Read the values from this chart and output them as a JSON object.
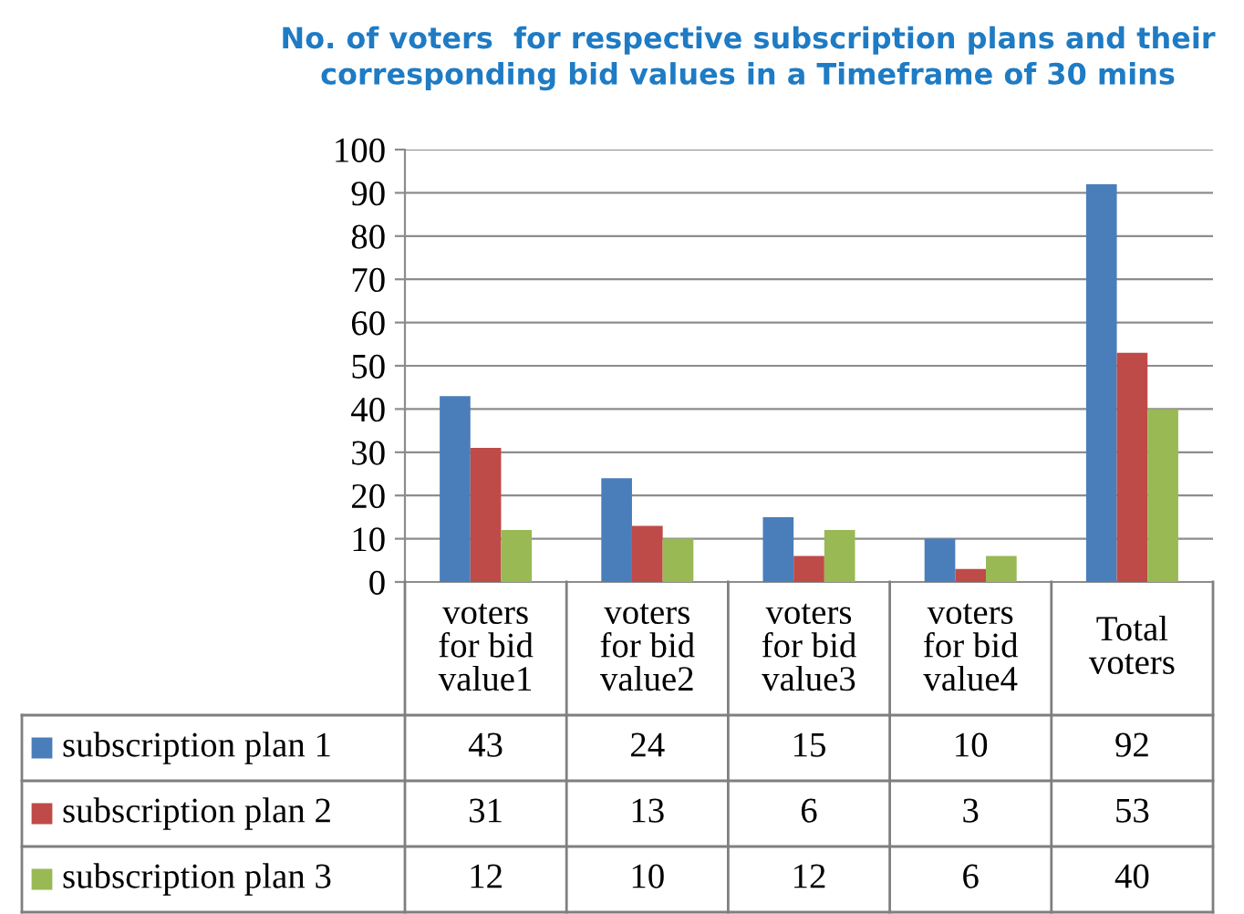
{
  "chart_data": {
    "type": "bar",
    "title": "No. of voters  for respective subscription plans and their corresponding bid values in a Timeframe of 30 mins",
    "categories": [
      "voters for bid value1",
      "voters for bid value2",
      "voters for bid value3",
      "voters for bid value4",
      "Total voters"
    ],
    "series": [
      {
        "name": "subscription plan 1",
        "color": "#4a7ebb",
        "values": [
          43,
          24,
          15,
          10,
          92
        ]
      },
      {
        "name": "subscription plan 2",
        "color": "#be4b48",
        "values": [
          31,
          13,
          6,
          3,
          53
        ]
      },
      {
        "name": "subscription plan 3",
        "color": "#98b954",
        "values": [
          12,
          10,
          12,
          6,
          40
        ]
      }
    ],
    "ylim": [
      0,
      100
    ],
    "yticks": [
      0,
      10,
      20,
      30,
      40,
      50,
      60,
      70,
      80,
      90,
      100
    ],
    "grid": "y",
    "legend": "bottom",
    "data_labels": true
  }
}
